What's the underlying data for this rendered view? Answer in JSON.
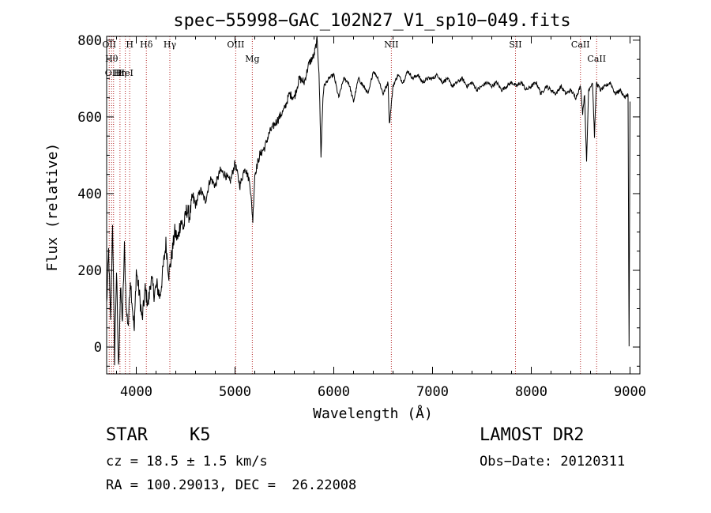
{
  "chart_data": {
    "type": "line",
    "title": "spec−55998−GAC_102N27_V1_sp10−049.fits",
    "xlabel": "Wavelength (Å)",
    "ylabel": "Flux (relative)",
    "xlim": [
      3700,
      9100
    ],
    "ylim": [
      -70,
      810
    ],
    "x_ticks": [
      4000,
      5000,
      6000,
      7000,
      8000,
      9000
    ],
    "y_ticks": [
      0,
      200,
      400,
      600,
      800
    ],
    "grid": false,
    "series": [
      {
        "color": "#000000",
        "x": [
          3700,
          3720,
          3740,
          3760,
          3780,
          3800,
          3820,
          3840,
          3860,
          3880,
          3900,
          3920,
          3940,
          3960,
          3980,
          4000,
          4030,
          4060,
          4090,
          4120,
          4150,
          4180,
          4210,
          4240,
          4270,
          4300,
          4330,
          4360,
          4390,
          4420,
          4450,
          4480,
          4510,
          4540,
          4570,
          4600,
          4650,
          4700,
          4750,
          4800,
          4850,
          4900,
          4950,
          5000,
          5050,
          5100,
          5150,
          5180,
          5200,
          5250,
          5300,
          5350,
          5400,
          5450,
          5500,
          5550,
          5600,
          5650,
          5700,
          5750,
          5800,
          5830,
          5850,
          5870,
          5890,
          5900,
          5950,
          6000,
          6050,
          6100,
          6150,
          6200,
          6250,
          6300,
          6350,
          6400,
          6450,
          6500,
          6550,
          6563,
          6600,
          6650,
          6700,
          6750,
          6800,
          6850,
          6900,
          6950,
          7000,
          7050,
          7100,
          7150,
          7200,
          7250,
          7300,
          7350,
          7400,
          7450,
          7500,
          7550,
          7600,
          7650,
          7700,
          7750,
          7800,
          7850,
          7900,
          7950,
          8000,
          8050,
          8100,
          8150,
          8200,
          8250,
          8300,
          8350,
          8400,
          8450,
          8500,
          8520,
          8540,
          8560,
          8580,
          8620,
          8640,
          8660,
          8680,
          8700,
          8750,
          8800,
          8850,
          8900,
          8950,
          8980,
          8990,
          9000
        ],
        "y": [
          110,
          250,
          60,
          330,
          -30,
          200,
          -60,
          150,
          70,
          260,
          90,
          60,
          180,
          110,
          40,
          200,
          140,
          70,
          150,
          110,
          180,
          140,
          160,
          130,
          200,
          270,
          190,
          240,
          300,
          280,
          330,
          310,
          360,
          340,
          390,
          370,
          410,
          380,
          440,
          420,
          460,
          450,
          430,
          480,
          420,
          470,
          430,
          330,
          450,
          500,
          520,
          560,
          580,
          600,
          620,
          660,
          650,
          700,
          690,
          740,
          760,
          800,
          720,
          500,
          650,
          680,
          700,
          710,
          650,
          700,
          690,
          640,
          700,
          680,
          660,
          720,
          700,
          660,
          690,
          580,
          680,
          710,
          690,
          720,
          700,
          710,
          690,
          700,
          700,
          710,
          690,
          700,
          680,
          690,
          700,
          680,
          690,
          670,
          680,
          690,
          680,
          690,
          670,
          680,
          690,
          680,
          690,
          670,
          680,
          690,
          660,
          680,
          670,
          660,
          680,
          660,
          670,
          650,
          680,
          610,
          660,
          480,
          670,
          690,
          550,
          690,
          680,
          670,
          680,
          690,
          660,
          670,
          650,
          660,
          0,
          640
        ]
      }
    ],
    "line_markers": [
      {
        "x": 3726,
        "label": "OII"
      },
      {
        "x": 3750,
        "label": "Hθ"
      },
      {
        "x": 3770,
        "label": "OIII"
      },
      {
        "x": 3835,
        "label": "Hη"
      },
      {
        "x": 3889,
        "label": "HeI"
      },
      {
        "x": 3933,
        "label": "H"
      },
      {
        "x": 4102,
        "label": "Hδ"
      },
      {
        "x": 4340,
        "label": "Hγ"
      },
      {
        "x": 5007,
        "label": "OIII"
      },
      {
        "x": 5175,
        "label": "Mg"
      },
      {
        "x": 6583,
        "label": "NII"
      },
      {
        "x": 7840,
        "label": "SII"
      },
      {
        "x": 8498,
        "label": "CaII"
      },
      {
        "x": 8662,
        "label": "CaII"
      }
    ]
  },
  "info": {
    "object_class": "STAR",
    "subclass": "K5",
    "survey": "LAMOST DR2",
    "redshift": "cz = 18.5 ± 1.5 km/s",
    "obs_date": "Obs−Date: 20120311",
    "coords": "RA = 100.29013, DEC =  26.22008"
  }
}
